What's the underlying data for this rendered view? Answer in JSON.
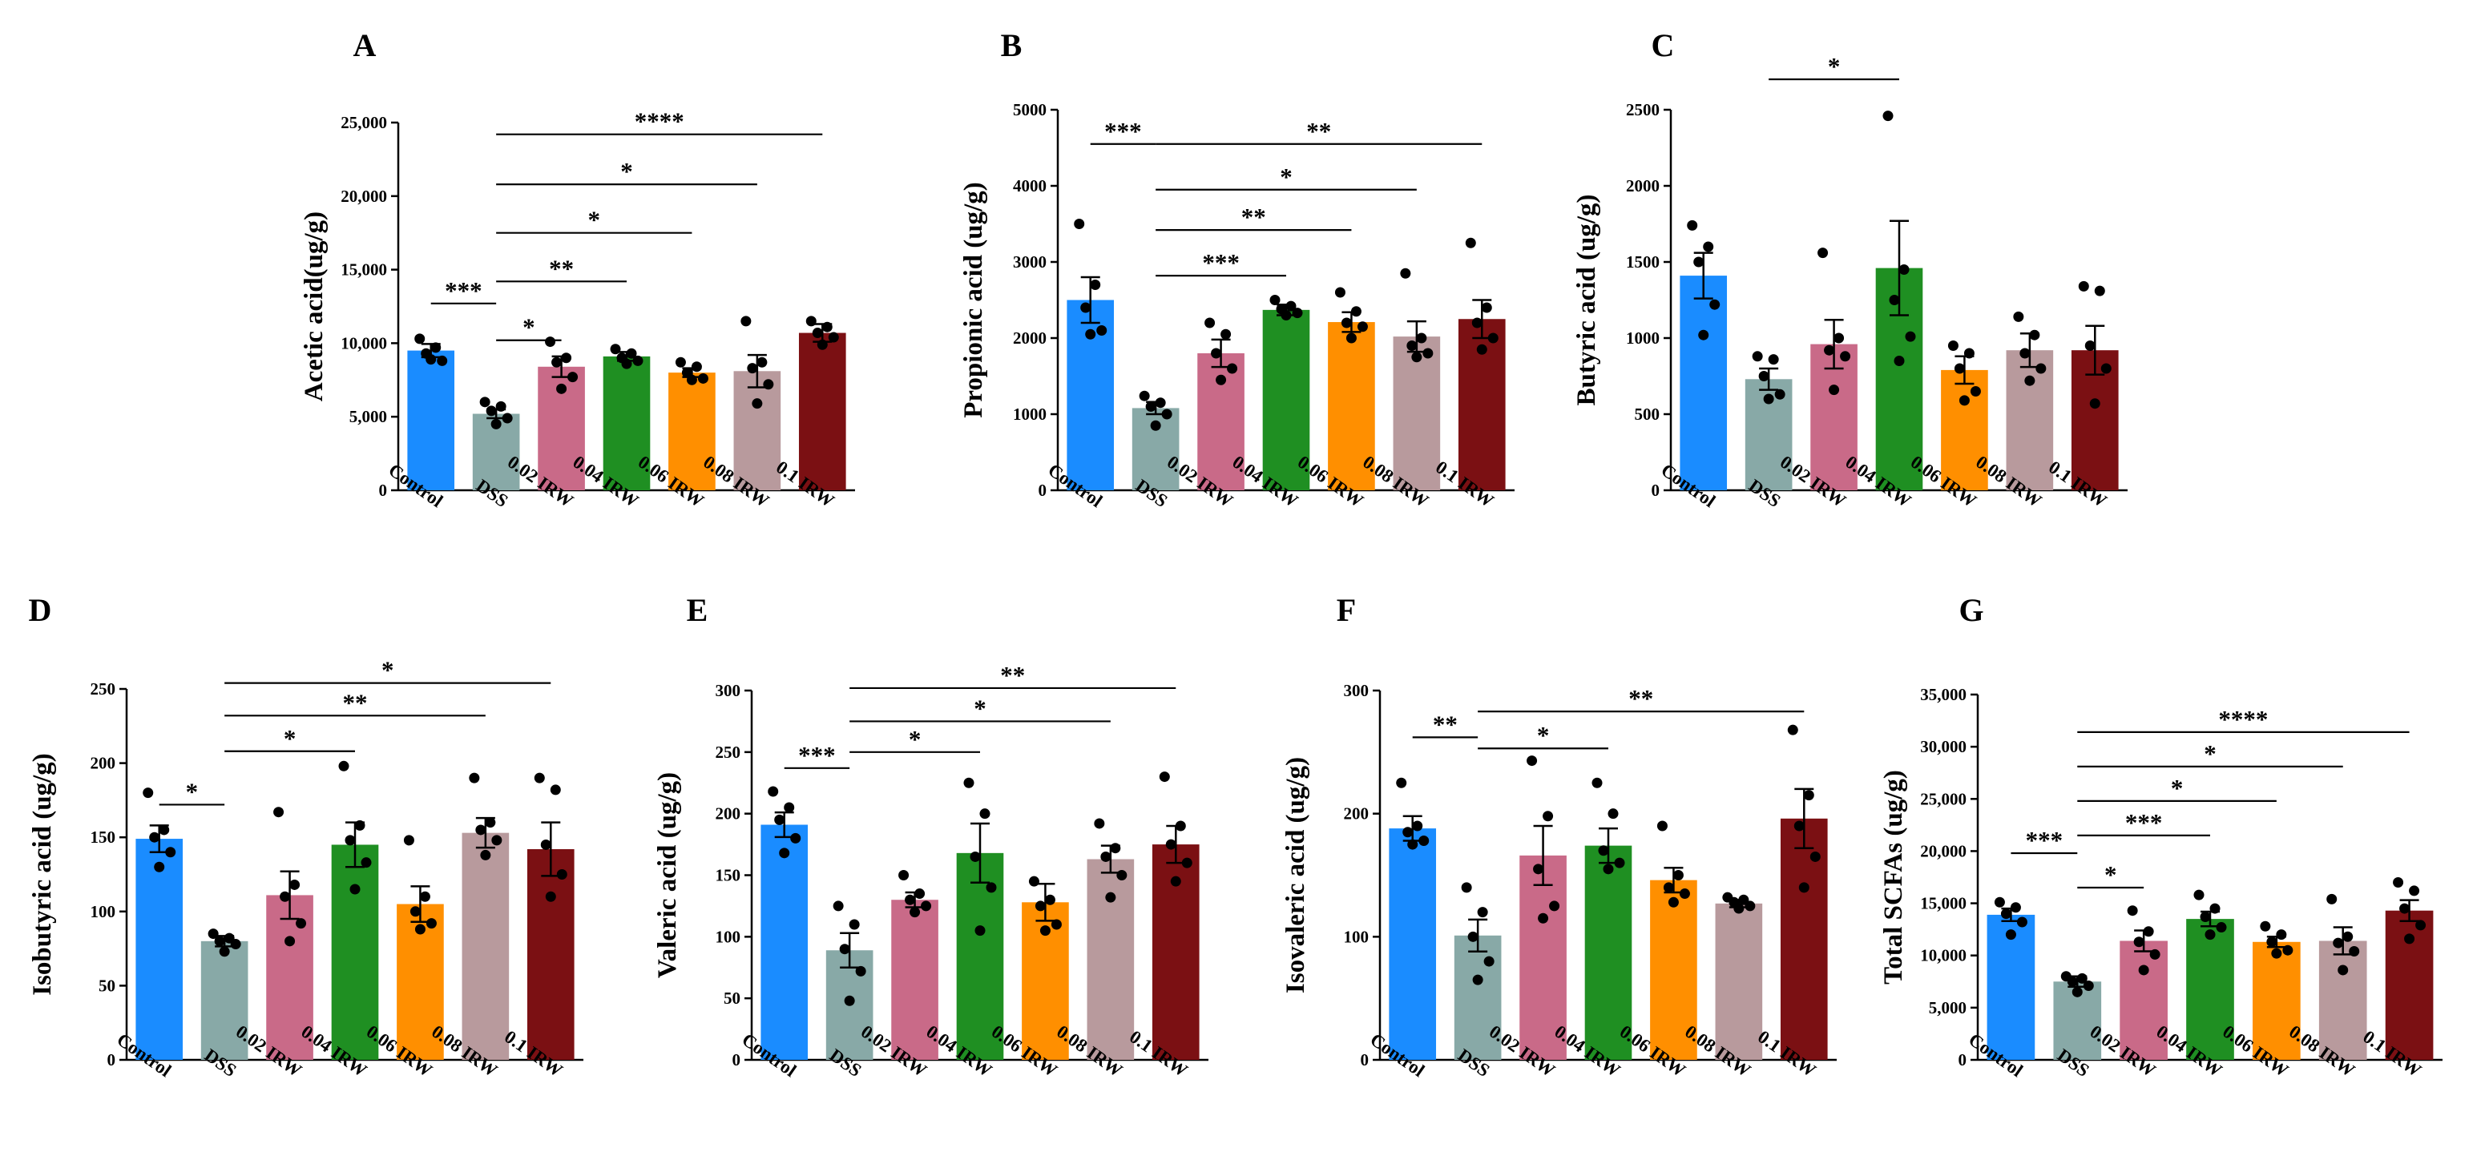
{
  "figure": {
    "categories": [
      "Control",
      "DSS",
      "0.02 IRW",
      "0.04 IRW",
      "0.06 IRW",
      "0.08 IRW",
      "0.1 IRW"
    ],
    "colors": [
      "#1a8cff",
      "#88a9a7",
      "#c96a88",
      "#1f8f22",
      "#ff8f00",
      "#b89a9d",
      "#7b1013"
    ]
  },
  "chart_data": [
    {
      "type": "bar",
      "panel": "A",
      "ylabel": "Acetic acid(ug/g)",
      "ylim": [
        0,
        25000
      ],
      "yticks": [
        0,
        5000,
        10000,
        15000,
        20000,
        25000
      ],
      "ytick_labels": [
        "0",
        "5,000",
        "10,000",
        "15,000",
        "20,000",
        "25,000"
      ],
      "values": [
        9500,
        5200,
        8400,
        9100,
        8000,
        8100,
        10700
      ],
      "errors": [
        450,
        300,
        700,
        300,
        300,
        1100,
        600
      ],
      "points": [
        [
          10300,
          9700,
          9300,
          8800,
          8900
        ],
        [
          6000,
          5700,
          5400,
          4900,
          4500
        ],
        [
          10100,
          9000,
          8700,
          7700,
          6900
        ],
        [
          9600,
          9300,
          9000,
          8800,
          8600
        ],
        [
          8700,
          8400,
          8000,
          7600,
          7500
        ],
        [
          11500,
          8700,
          8300,
          7200,
          5900
        ],
        [
          11500,
          11100,
          10700,
          10400,
          9900
        ]
      ],
      "comparisons": [
        {
          "from": 0,
          "to": 1,
          "label": "***",
          "y": 12700
        },
        {
          "from": 1,
          "to": 2,
          "label": "*",
          "y": 10200
        },
        {
          "from": 1,
          "to": 3,
          "label": "**",
          "y": 14200
        },
        {
          "from": 1,
          "to": 4,
          "label": "*",
          "y": 17500
        },
        {
          "from": 1,
          "to": 5,
          "label": "*",
          "y": 20800
        },
        {
          "from": 1,
          "to": 6,
          "label": "****",
          "y": 24200
        }
      ]
    },
    {
      "type": "bar",
      "panel": "B",
      "ylabel": "Propionic acid (ug/g)",
      "ylim": [
        0,
        5000
      ],
      "yticks": [
        0,
        1000,
        2000,
        3000,
        4000,
        5000
      ],
      "ytick_labels": [
        "0",
        "1000",
        "2000",
        "3000",
        "4000",
        "5000"
      ],
      "values": [
        2500,
        1080,
        1800,
        2370,
        2210,
        2020,
        2250
      ],
      "errors": [
        300,
        80,
        180,
        70,
        130,
        200,
        250
      ],
      "points": [
        [
          3500,
          2700,
          2400,
          2100,
          2050
        ],
        [
          1240,
          1150,
          1100,
          1000,
          850
        ],
        [
          2200,
          2050,
          1800,
          1600,
          1450
        ],
        [
          2500,
          2420,
          2380,
          2330,
          2300
        ],
        [
          2600,
          2350,
          2200,
          2150,
          2000
        ],
        [
          2850,
          2000,
          1900,
          1800,
          1750
        ],
        [
          3250,
          2400,
          2200,
          2000,
          1850
        ]
      ],
      "comparisons": [
        {
          "from": 0,
          "to": 1,
          "label": "***",
          "y": 4550
        },
        {
          "from": 1,
          "to": 3,
          "label": "***",
          "y": 2820
        },
        {
          "from": 1,
          "to": 4,
          "label": "**",
          "y": 3420
        },
        {
          "from": 1,
          "to": 5,
          "label": "*",
          "y": 3950
        },
        {
          "from": 1,
          "to": 6,
          "label": "**",
          "y": 4550
        }
      ]
    },
    {
      "type": "bar",
      "panel": "C",
      "ylabel": "Butyric acid (ug/g)",
      "ylim": [
        0,
        2500
      ],
      "yticks": [
        0,
        500,
        1000,
        1500,
        2000,
        2500
      ],
      "ytick_labels": [
        "0",
        "500",
        "1000",
        "1500",
        "2000",
        "2500"
      ],
      "values": [
        1410,
        730,
        960,
        1460,
        790,
        920,
        920
      ],
      "errors": [
        150,
        70,
        160,
        310,
        90,
        110,
        160
      ],
      "points": [
        [
          1740,
          1600,
          1500,
          1220,
          1020
        ],
        [
          880,
          860,
          750,
          630,
          600
        ],
        [
          1560,
          1000,
          920,
          880,
          660
        ],
        [
          2460,
          1450,
          1250,
          1010,
          850
        ],
        [
          950,
          900,
          800,
          650,
          590
        ],
        [
          1140,
          1020,
          900,
          800,
          720
        ],
        [
          1340,
          1310,
          950,
          800,
          570
        ]
      ],
      "comparisons": [
        {
          "from": 1,
          "to": 3,
          "label": "*",
          "y": 2700
        }
      ]
    },
    {
      "type": "bar",
      "panel": "D",
      "ylabel": "Isobutyric acid (ug/g)",
      "ylim": [
        0,
        250
      ],
      "yticks": [
        0,
        50,
        100,
        150,
        200,
        250
      ],
      "ytick_labels": [
        "0",
        "50",
        "100",
        "150",
        "200",
        "250"
      ],
      "values": [
        149,
        80,
        111,
        145,
        105,
        153,
        142
      ],
      "errors": [
        9,
        3.5,
        16,
        15,
        12,
        10,
        18
      ],
      "points": [
        [
          180,
          155,
          150,
          140,
          130
        ],
        [
          85,
          82,
          80,
          78,
          73
        ],
        [
          167,
          118,
          110,
          92,
          80
        ],
        [
          198,
          158,
          148,
          133,
          115
        ],
        [
          148,
          110,
          100,
          92,
          88
        ],
        [
          190,
          160,
          155,
          148,
          138
        ],
        [
          190,
          182,
          145,
          125,
          110
        ]
      ],
      "comparisons": [
        {
          "from": 0,
          "to": 1,
          "label": "*",
          "y": 172
        },
        {
          "from": 1,
          "to": 3,
          "label": "*",
          "y": 208
        },
        {
          "from": 1,
          "to": 5,
          "label": "**",
          "y": 232
        },
        {
          "from": 1,
          "to": 6,
          "label": "*",
          "y": 254
        }
      ]
    },
    {
      "type": "bar",
      "panel": "E",
      "ylabel": "Valeric acid (ug/g)",
      "ylim": [
        0,
        300
      ],
      "yticks": [
        0,
        50,
        100,
        150,
        200,
        250,
        300
      ],
      "ytick_labels": [
        "0",
        "50",
        "100",
        "150",
        "200",
        "250",
        "300"
      ],
      "values": [
        191,
        89,
        130,
        168,
        128,
        163,
        175
      ],
      "errors": [
        10,
        14,
        6,
        24,
        15,
        11,
        15
      ],
      "points": [
        [
          218,
          205,
          195,
          180,
          168
        ],
        [
          125,
          110,
          90,
          72,
          48
        ],
        [
          150,
          135,
          130,
          125,
          120
        ],
        [
          225,
          200,
          165,
          140,
          105
        ],
        [
          145,
          130,
          125,
          110,
          105
        ],
        [
          192,
          172,
          165,
          150,
          132
        ],
        [
          230,
          190,
          175,
          160,
          145
        ]
      ],
      "comparisons": [
        {
          "from": 0,
          "to": 1,
          "label": "***",
          "y": 237
        },
        {
          "from": 1,
          "to": 3,
          "label": "*",
          "y": 250
        },
        {
          "from": 1,
          "to": 5,
          "label": "*",
          "y": 275
        },
        {
          "from": 1,
          "to": 6,
          "label": "**",
          "y": 302
        }
      ]
    },
    {
      "type": "bar",
      "panel": "F",
      "ylabel": "Isovaleric acid (ug/g)",
      "ylim": [
        0,
        300
      ],
      "yticks": [
        0,
        100,
        200,
        300
      ],
      "ytick_labels": [
        "0",
        "100",
        "200",
        "300"
      ],
      "values": [
        188,
        101,
        166,
        174,
        146,
        127,
        196
      ],
      "errors": [
        10,
        13,
        24,
        14,
        10,
        3,
        24
      ],
      "points": [
        [
          225,
          190,
          185,
          178,
          175
        ],
        [
          140,
          120,
          100,
          80,
          65
        ],
        [
          243,
          198,
          155,
          125,
          115
        ],
        [
          225,
          200,
          170,
          160,
          155
        ],
        [
          190,
          150,
          140,
          135,
          128
        ],
        [
          132,
          130,
          128,
          125,
          123
        ],
        [
          268,
          215,
          190,
          165,
          140
        ]
      ],
      "comparisons": [
        {
          "from": 0,
          "to": 1,
          "label": "**",
          "y": 262
        },
        {
          "from": 1,
          "to": 3,
          "label": "*",
          "y": 253
        },
        {
          "from": 1,
          "to": 6,
          "label": "**",
          "y": 283
        }
      ]
    },
    {
      "type": "bar",
      "panel": "G",
      "ylabel": "Total SCFAs (ug/g)",
      "ylim": [
        0,
        35000
      ],
      "yticks": [
        0,
        5000,
        10000,
        15000,
        20000,
        25000,
        30000,
        35000
      ],
      "ytick_labels": [
        "0",
        "5,000",
        "10,000",
        "15,000",
        "20,000",
        "25,000",
        "30,000",
        "35,000"
      ],
      "values": [
        13900,
        7500,
        11400,
        13500,
        11300,
        11400,
        14300
      ],
      "errors": [
        600,
        500,
        1000,
        700,
        500,
        1300,
        1000
      ],
      "points": [
        [
          15100,
          14600,
          14000,
          13200,
          12000
        ],
        [
          8000,
          7800,
          7500,
          7100,
          6500
        ],
        [
          14300,
          12300,
          11300,
          10100,
          8600
        ],
        [
          15800,
          14500,
          13700,
          12700,
          12000
        ],
        [
          12800,
          12000,
          11300,
          10500,
          10200
        ],
        [
          15400,
          11800,
          11200,
          10400,
          8600
        ],
        [
          17000,
          16200,
          14500,
          12900,
          11600
        ]
      ],
      "comparisons": [
        {
          "from": 0,
          "to": 1,
          "label": "***",
          "y": 19800
        },
        {
          "from": 1,
          "to": 2,
          "label": "*",
          "y": 16500
        },
        {
          "from": 1,
          "to": 3,
          "label": "***",
          "y": 21500
        },
        {
          "from": 1,
          "to": 4,
          "label": "*",
          "y": 24800
        },
        {
          "from": 1,
          "to": 5,
          "label": "*",
          "y": 28100
        },
        {
          "from": 1,
          "to": 6,
          "label": "****",
          "y": 31400
        }
      ]
    }
  ]
}
